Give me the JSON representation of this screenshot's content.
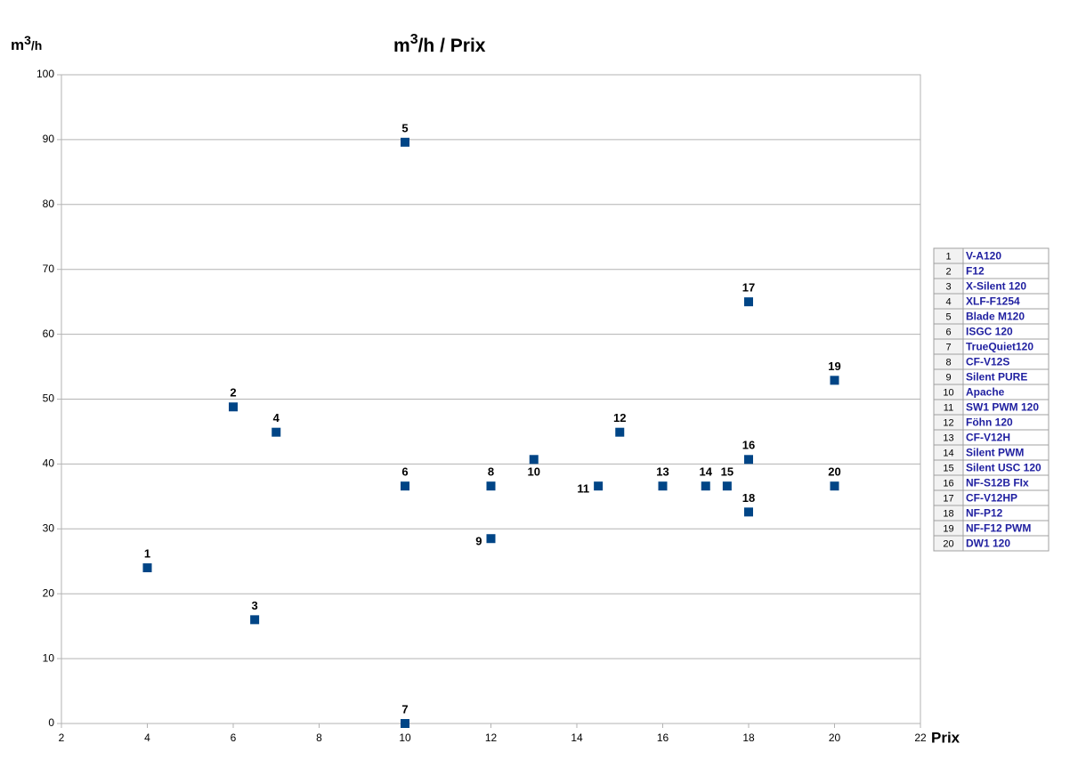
{
  "chart_data": {
    "type": "scatter",
    "title": [
      "m",
      "3",
      "/h / Prix"
    ],
    "ylabel": [
      "m",
      "3",
      "/h"
    ],
    "xlabel": "Prix",
    "color": "#004586",
    "grid": true,
    "xlim": [
      2,
      22
    ],
    "xticks": [
      2,
      4,
      6,
      8,
      10,
      12,
      14,
      16,
      18,
      20,
      22
    ],
    "ylim": [
      0,
      100
    ],
    "yticks": [
      0,
      10,
      20,
      30,
      40,
      50,
      60,
      70,
      80,
      90,
      100
    ],
    "x": [
      4,
      6,
      6.5,
      7,
      10,
      10,
      10,
      12,
      12,
      13,
      14.5,
      15,
      16,
      17,
      17.5,
      18,
      18,
      18,
      20,
      20
    ],
    "values": [
      24,
      48.8,
      16,
      44.9,
      89.6,
      36.6,
      0,
      36.6,
      28.5,
      40.7,
      36.6,
      44.9,
      36.6,
      36.6,
      36.6,
      40.7,
      65,
      32.6,
      52.9,
      36.6
    ],
    "labels": [
      "1",
      "2",
      "3",
      "4",
      "5",
      "6",
      "7",
      "8",
      "9",
      "10",
      "11",
      "12",
      "13",
      "14",
      "15",
      "16",
      "17",
      "18",
      "19",
      "20"
    ],
    "names": [
      "V-A120",
      "F12",
      "X-Silent 120",
      "XLF-F1254",
      "Blade M120",
      "ISGC 120",
      "TrueQuiet120",
      "CF-V12S",
      "Silent PURE",
      "Apache",
      "SW1 PWM 120",
      "Föhn 120",
      "CF-V12H",
      "Silent PWM",
      "Silent USC 120",
      "NF-S12B FIx",
      "CF-V12HP",
      "NF-P12",
      "NF-F12 PWM",
      "DW1 120"
    ]
  }
}
